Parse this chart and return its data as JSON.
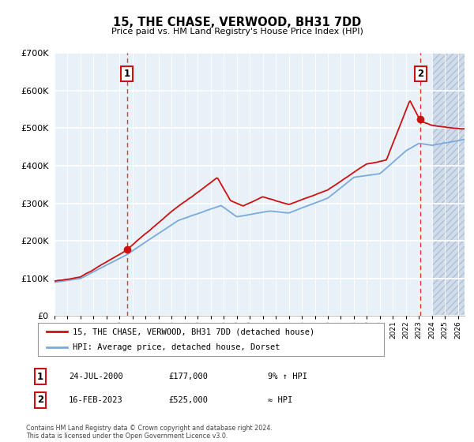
{
  "title": "15, THE CHASE, VERWOOD, BH31 7DD",
  "subtitle": "Price paid vs. HM Land Registry's House Price Index (HPI)",
  "legend_line1": "15, THE CHASE, VERWOOD, BH31 7DD (detached house)",
  "legend_line2": "HPI: Average price, detached house, Dorset",
  "ann1_date": "24-JUL-2000",
  "ann1_price": "£177,000",
  "ann1_note": "9% ↑ HPI",
  "ann2_date": "16-FEB-2023",
  "ann2_price": "£525,000",
  "ann2_note": "≈ HPI",
  "footer": "Contains HM Land Registry data © Crown copyright and database right 2024.\nThis data is licensed under the Open Government Licence v3.0.",
  "hpi_color": "#7aaadd",
  "price_color": "#cc1111",
  "bg_color": "#e8f0f8",
  "grid_color": "#ffffff",
  "vline_color": "#ee3333",
  "point1_x": 2000.56,
  "point1_y": 177000,
  "point2_x": 2023.12,
  "point2_y": 525000,
  "xlim": [
    1995.0,
    2026.5
  ],
  "ylim": [
    0,
    700000
  ],
  "yticks": [
    0,
    100000,
    200000,
    300000,
    400000,
    500000,
    600000,
    700000
  ],
  "ytick_labels": [
    "£0",
    "£100K",
    "£200K",
    "£300K",
    "£400K",
    "£500K",
    "£600K",
    "£700K"
  ]
}
